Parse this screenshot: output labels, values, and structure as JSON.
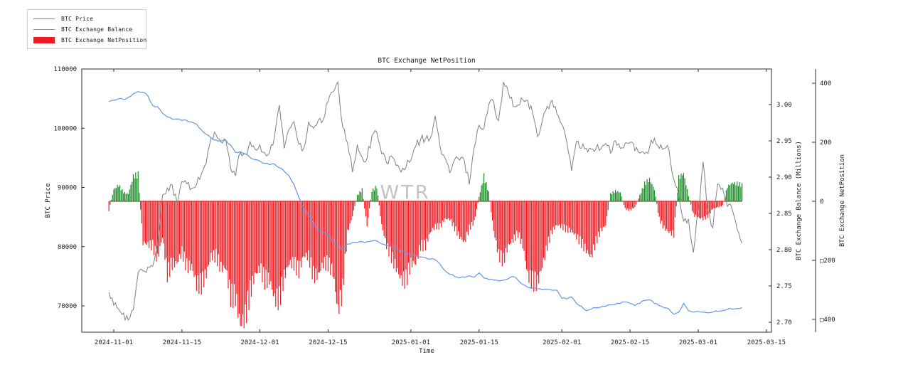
{
  "chart_data": {
    "type": "line",
    "title": "BTC Exchange NetPosition",
    "xlabel": "Time",
    "watermark": "WTR",
    "background_color": "#ffffff",
    "grid": false,
    "legend_position": "upper-left-outside",
    "x_ticks": [
      "2024-11-01",
      "2024-11-15",
      "2024-12-01",
      "2024-12-15",
      "2025-01-01",
      "2025-01-15",
      "2025-02-01",
      "2025-02-15",
      "2025-03-01",
      "2025-03-15"
    ],
    "start_date": "2024-10-31",
    "interval_days": 1,
    "axes": {
      "left": {
        "label": "BTC Price",
        "tick_labels": [
          "110000",
          "100000",
          "90000",
          "80000",
          "70000"
        ],
        "tick_values": [
          110000,
          100000,
          90000,
          80000,
          70000
        ],
        "range": [
          65500,
          110000
        ]
      },
      "right1": {
        "label": "BTC Exchange Balance (Millions)",
        "tick_labels": [
          "3.00",
          "2.95",
          "2.90",
          "2.85",
          "2.80",
          "2.75",
          "2.70"
        ],
        "tick_values": [
          3.0,
          2.95,
          2.9,
          2.85,
          2.8,
          2.75,
          2.7
        ],
        "range": [
          2.665,
          3.035
        ]
      },
      "right2": {
        "label": "BTC Exchange NetPosition",
        "tick_labels": [
          "400",
          "200",
          "0",
          "□200",
          "□400"
        ],
        "tick_values": [
          400,
          200,
          0,
          -200,
          -400
        ],
        "range": [
          -450,
          455
        ]
      }
    },
    "series": [
      {
        "name": "BTC Price",
        "type": "line",
        "axis": "left",
        "color": "#808080",
        "values": [
          72300,
          70100,
          69450,
          68800,
          67600,
          69350,
          75600,
          75900,
          76550,
          76700,
          80400,
          88700,
          89900,
          90400,
          87300,
          91000,
          90600,
          89850,
          90500,
          92300,
          94200,
          98400,
          98900,
          97700,
          98000,
          93100,
          91950,
          95900,
          95650,
          97700,
          96450,
          97200,
          95850,
          95900,
          98600,
          103900,
          96600,
          99900,
          101100,
          97300,
          96600,
          101100,
          100000,
          101400,
          101400,
          104500,
          106100,
          107800,
          100200,
          97500,
          92600,
          97200,
          95100,
          94900,
          98700,
          99300,
          95700,
          94200,
          95300,
          93700,
          92600,
          93400,
          94600,
          96900,
          98100,
          98200,
          98300,
          102100,
          96900,
          95000,
          92500,
          94700,
          94600,
          94500,
          90500,
          96700,
          100500,
          99900,
          104000,
          104500,
          101300,
          107800,
          106100,
          103700,
          103900,
          104800,
          104700,
          102600,
          98600,
          101300,
          103700,
          104700,
          102400,
          100600,
          97700,
          92800,
          97800,
          96600,
          96600,
          96500,
          96500,
          96500,
          97400,
          95800,
          97900,
          96600,
          97500,
          97600,
          96200,
          95800,
          95700,
          96700,
          98300,
          96600,
          96600,
          96300,
          91400,
          88700,
          84300,
          84700,
          79000,
          86000,
          94300,
          86100,
          83200,
          90600,
          89900,
          86800,
          86200,
          82900,
          80600
        ]
      },
      {
        "name": "BTC Exchange Balance",
        "type": "line",
        "axis": "right1",
        "color": "#6495ED",
        "values": [
          3.004,
          3.006,
          3.008,
          3.007,
          3.01,
          3.015,
          3.018,
          3.017,
          3.012,
          2.999,
          2.997,
          2.988,
          2.983,
          2.98,
          2.98,
          2.978,
          2.978,
          2.976,
          2.973,
          2.965,
          2.959,
          2.954,
          2.951,
          2.95,
          2.951,
          2.944,
          2.934,
          2.935,
          2.932,
          2.927,
          2.924,
          2.922,
          2.919,
          2.917,
          2.918,
          2.913,
          2.908,
          2.902,
          2.89,
          2.872,
          2.856,
          2.848,
          2.836,
          2.829,
          2.824,
          2.82,
          2.812,
          2.806,
          2.8,
          2.808,
          2.81,
          2.81,
          2.811,
          2.811,
          2.812,
          2.812,
          2.808,
          2.806,
          2.804,
          2.8,
          2.798,
          2.795,
          2.793,
          2.792,
          2.79,
          2.789,
          2.787,
          2.786,
          2.78,
          2.771,
          2.766,
          2.763,
          2.761,
          2.762,
          2.764,
          2.762,
          2.768,
          2.761,
          2.759,
          2.758,
          2.757,
          2.758,
          2.76,
          2.763,
          2.758,
          2.752,
          2.748,
          2.747,
          2.746,
          2.745,
          2.745,
          2.744,
          2.744,
          2.733,
          2.732,
          2.735,
          2.726,
          2.722,
          2.716,
          2.718,
          2.72,
          2.721,
          2.722,
          2.724,
          2.725,
          2.726,
          2.728,
          2.726,
          2.723,
          2.726,
          2.73,
          2.731,
          2.726,
          2.723,
          2.72,
          2.718,
          2.711,
          2.714,
          2.726,
          2.716,
          2.714,
          2.715,
          2.714,
          2.713,
          2.714,
          2.715,
          2.716,
          2.718,
          2.718,
          2.719,
          2.72
        ]
      },
      {
        "name": "BTC Exchange NetPosition",
        "type": "bar",
        "axis": "right2",
        "color_positive": "#1c8c28",
        "color_negative": "#ed1c24",
        "values": [
          -30,
          40,
          55,
          30,
          25,
          85,
          90,
          -140,
          -145,
          -150,
          -195,
          -120,
          -245,
          -210,
          -210,
          -170,
          -220,
          -220,
          -280,
          -280,
          -245,
          -185,
          -185,
          -225,
          -225,
          -320,
          -320,
          -420,
          -390,
          -305,
          -250,
          -225,
          -265,
          -265,
          -330,
          -330,
          -255,
          -210,
          -210,
          -235,
          -185,
          -185,
          -250,
          -250,
          -210,
          -210,
          -240,
          -370,
          -300,
          -105,
          -50,
          20,
          40,
          -85,
          35,
          50,
          -80,
          -150,
          -185,
          -225,
          -265,
          -265,
          -210,
          -210,
          -150,
          -150,
          -105,
          -85,
          -85,
          -60,
          -60,
          -90,
          -120,
          -140,
          -90,
          -70,
          15,
          85,
          30,
          -100,
          -180,
          -200,
          -150,
          -130,
          -110,
          -150,
          -250,
          -270,
          -275,
          -220,
          -150,
          -100,
          -80,
          -85,
          -95,
          -100,
          -120,
          -140,
          -165,
          -190,
          -135,
          -100,
          -80,
          25,
          35,
          30,
          -25,
          -30,
          -20,
          20,
          60,
          75,
          40,
          -60,
          -90,
          -105,
          -110,
          80,
          95,
          20,
          -45,
          -55,
          -60,
          -50,
          -25,
          -20,
          -15,
          50,
          62,
          60,
          55
        ]
      }
    ]
  }
}
